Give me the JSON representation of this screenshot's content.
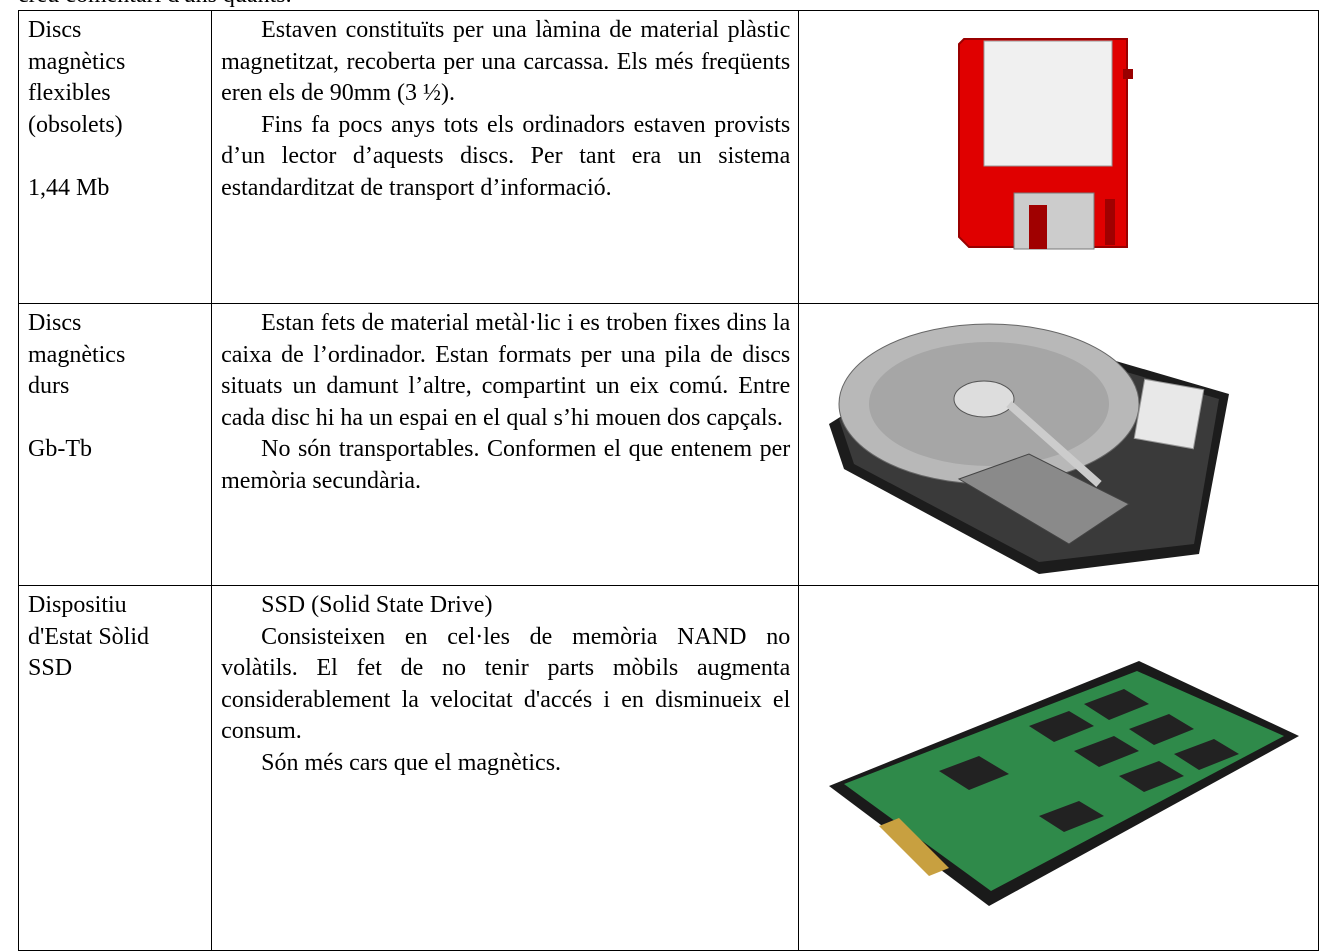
{
  "intro": "creu comentari d'uns quants.",
  "table": {
    "rows": [
      {
        "label": [
          "Discs",
          "magnètics",
          "flexibles",
          "(obsolets)"
        ],
        "capacity": "1,44 Mb",
        "paragraphs": [
          "Estaven constituïts per una làmina de material plàstic magnetitzat, recoberta per una carcassa. Els més freqüents eren els de 90mm (3 ½).",
          "Fins fa pocs anys tots els ordinadors estaven provists d’un lector d’aquests discs. Per tant era un sistema estandarditzat de transport d’informació."
        ]
      },
      {
        "label": [
          "Discs",
          "magnètics",
          "durs"
        ],
        "capacity": "Gb-Tb",
        "paragraphs": [
          "Estan fets de material metàl·lic i es troben fixes dins la caixa de l’ordinador. Estan formats per una pila de discs situats un damunt l’altre, compartint un eix comú. Entre cada disc hi ha un espai en el qual s’hi mouen dos capçals.",
          "No són transportables. Conformen el que entenem per memòria secundària."
        ]
      },
      {
        "label": [
          "Dispositiu",
          "d'Estat Sòlid",
          "SSD"
        ],
        "paragraphs": [
          "SSD (Solid State Drive)",
          "Consisteixen en cel·les de memòria NAND no volàtils. El fet de no tenir parts mòbils augmenta considerablement la velocitat d'accés i en disminueix el consum.",
          "Són més cars que el magnètics."
        ]
      }
    ]
  }
}
